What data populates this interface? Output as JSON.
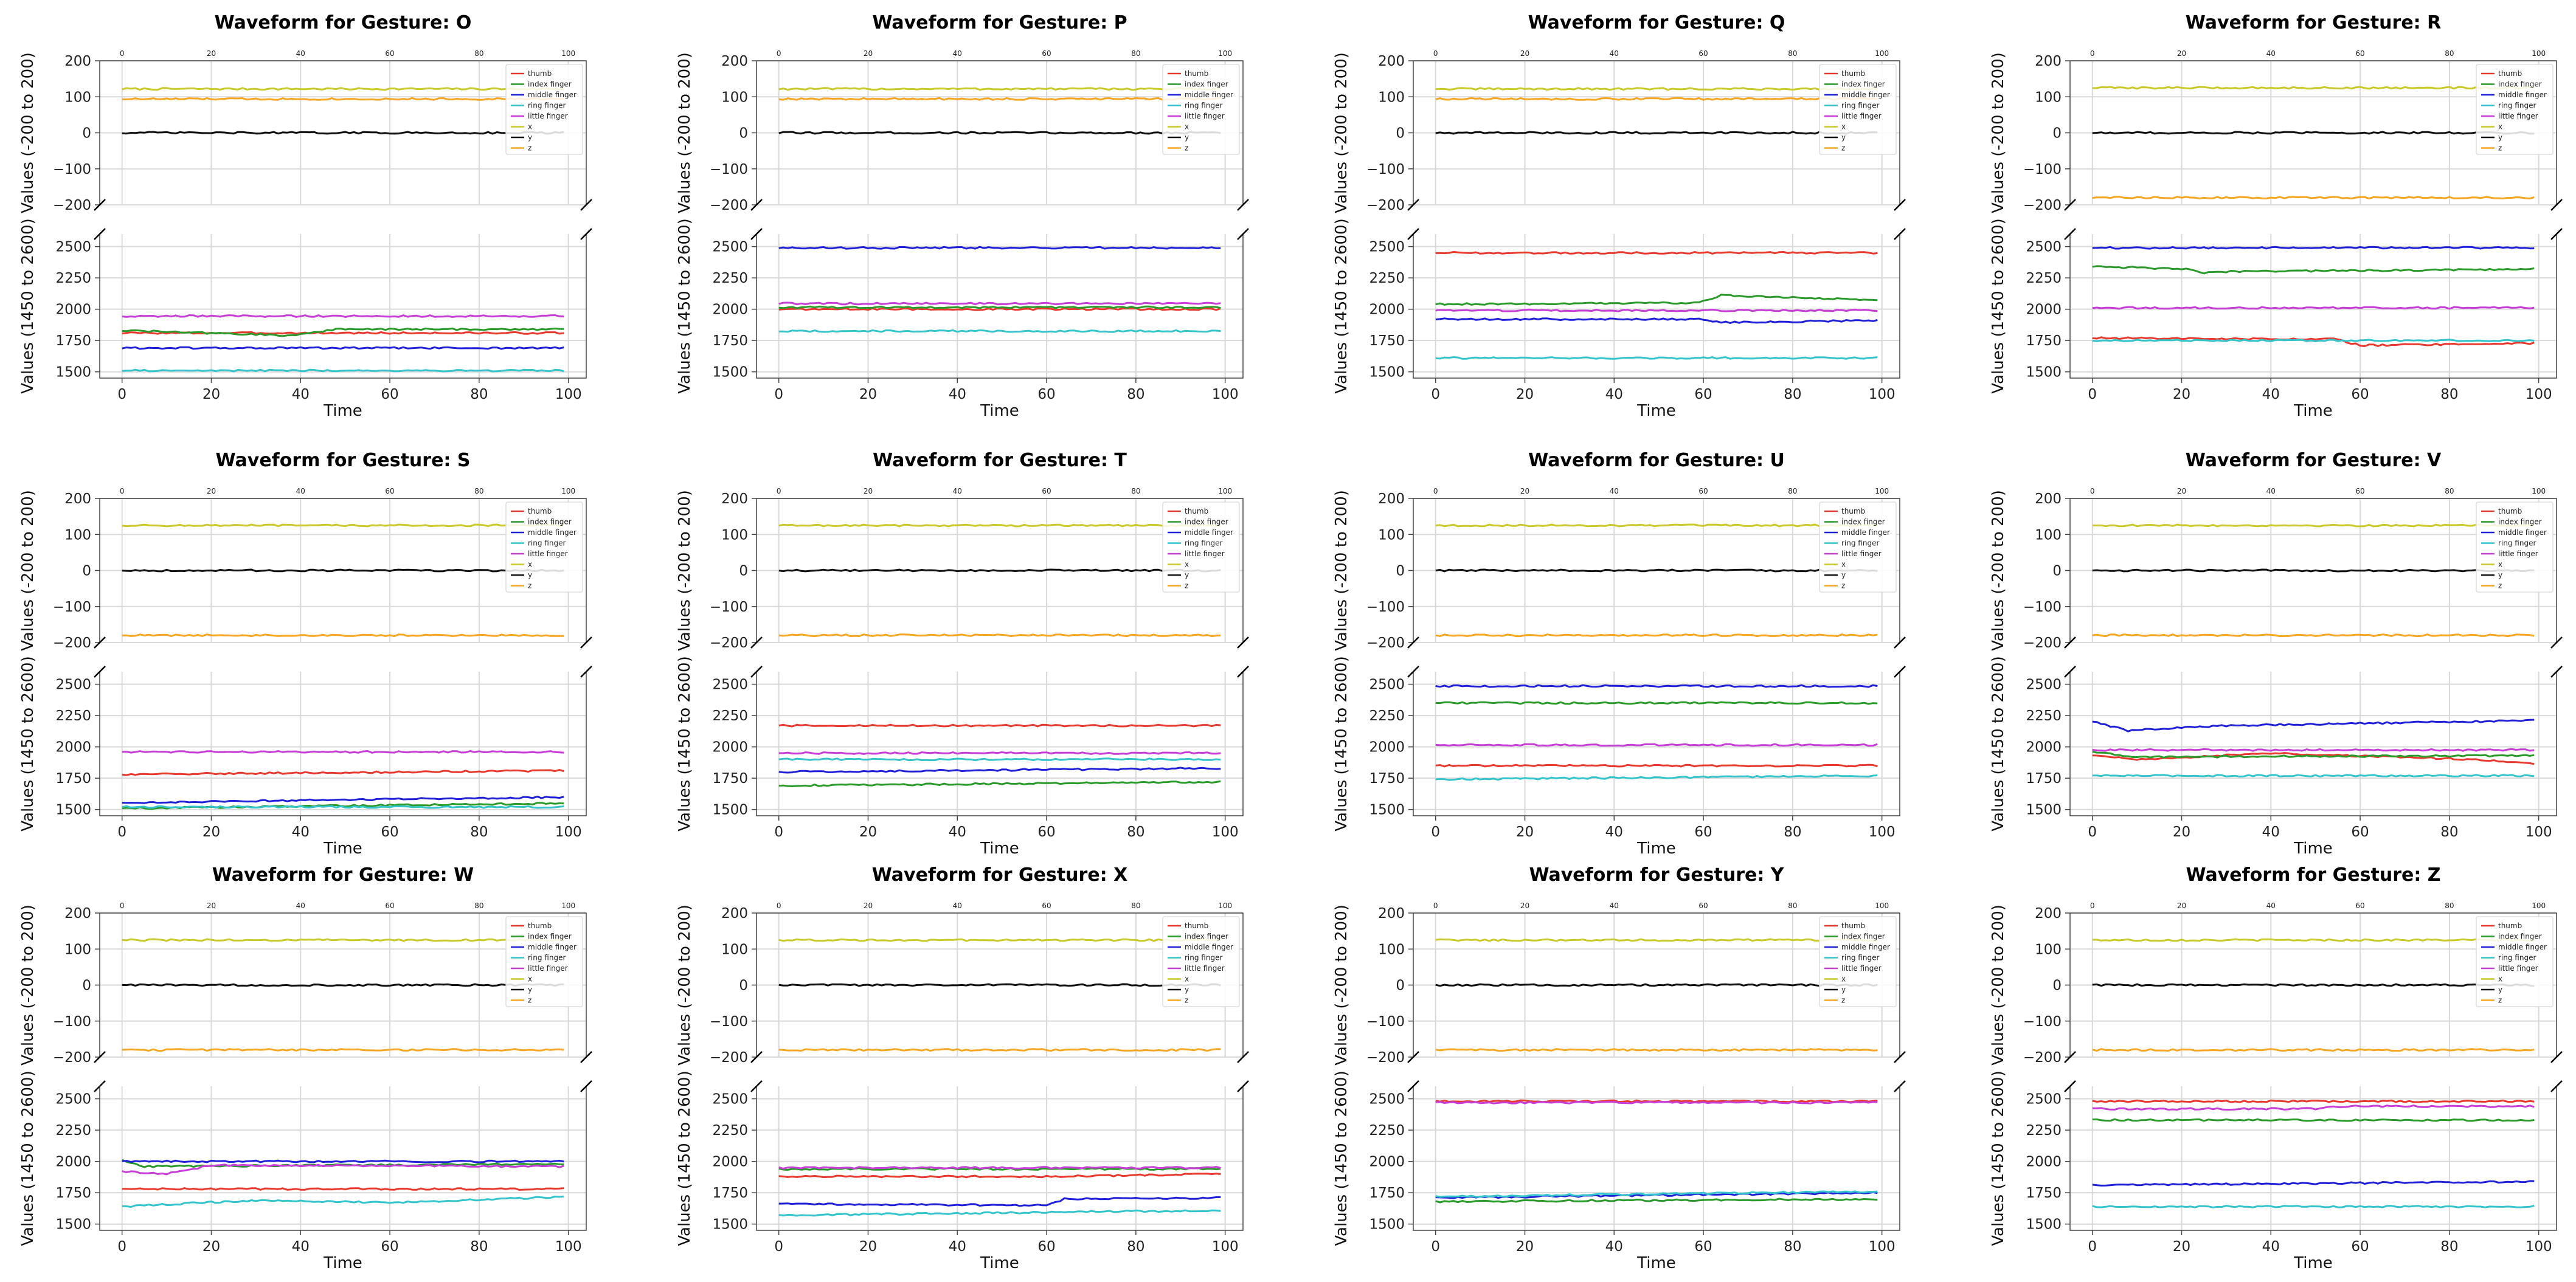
{
  "chart_data": [
    {
      "type": "line",
      "title": "Waveform for Gesture: O",
      "top_series": {
        "x": 122,
        "y": 0,
        "z": 94
      },
      "bottom_series": {
        "thumb": 1810,
        "index finger": 1830,
        "middle finger": 1690,
        "ring finger": 1510,
        "little finger": 1945
      },
      "bottom_events": {
        "index finger": [
          [
            38,
            1790
          ],
          [
            48,
            1840
          ]
        ]
      }
    },
    {
      "type": "line",
      "title": "Waveform for Gesture: P",
      "top_series": {
        "x": 122,
        "y": 0,
        "z": 94
      },
      "bottom_series": {
        "thumb": 2000,
        "index finger": 2015,
        "middle finger": 2490,
        "ring finger": 1825,
        "little finger": 2045
      },
      "bottom_events": {}
    },
    {
      "type": "line",
      "title": "Waveform for Gesture: Q",
      "top_series": {
        "x": 122,
        "y": 0,
        "z": 94
      },
      "bottom_series": {
        "thumb": 2450,
        "index finger": 2040,
        "middle finger": 1920,
        "ring finger": 1610,
        "little finger": 1990
      },
      "bottom_events": {
        "index finger": [
          [
            58,
            2050
          ],
          [
            64,
            2110
          ],
          [
            100,
            2070
          ]
        ],
        "middle finger": [
          [
            60,
            1920
          ],
          [
            64,
            1895
          ],
          [
            100,
            1910
          ]
        ]
      }
    },
    {
      "type": "line",
      "title": "Waveform for Gesture: R",
      "top_series": {
        "x": 125,
        "y": 0,
        "z": -180
      },
      "bottom_series": {
        "thumb": 1770,
        "index finger": 2340,
        "middle finger": 2490,
        "ring finger": 1750,
        "little finger": 2010
      },
      "bottom_events": {
        "index finger": [
          [
            22,
            2320
          ],
          [
            24,
            2290
          ],
          [
            30,
            2300
          ],
          [
            100,
            2320
          ]
        ],
        "thumb": [
          [
            55,
            1760
          ],
          [
            60,
            1710
          ],
          [
            100,
            1730
          ]
        ]
      }
    },
    {
      "type": "line",
      "title": "Waveform for Gesture: S",
      "top_series": {
        "x": 125,
        "y": 0,
        "z": -180
      },
      "bottom_series": {
        "thumb": 1780,
        "index finger": 1510,
        "middle finger": 1555,
        "ring finger": 1520,
        "little finger": 1960
      },
      "bottom_events": {
        "middle finger": [
          [
            100,
            1600
          ]
        ],
        "index finger": [
          [
            100,
            1550
          ]
        ],
        "thumb": [
          [
            100,
            1810
          ]
        ]
      }
    },
    {
      "type": "line",
      "title": "Waveform for Gesture: T",
      "top_series": {
        "x": 125,
        "y": 0,
        "z": -180
      },
      "bottom_series": {
        "thumb": 2170,
        "index finger": 1690,
        "middle finger": 1800,
        "ring finger": 1900,
        "little finger": 1950
      },
      "bottom_events": {
        "middle finger": [
          [
            100,
            1830
          ]
        ],
        "index finger": [
          [
            100,
            1720
          ]
        ]
      }
    },
    {
      "type": "line",
      "title": "Waveform for Gesture: U",
      "top_series": {
        "x": 125,
        "y": 0,
        "z": -180
      },
      "bottom_series": {
        "thumb": 1850,
        "index finger": 2350,
        "middle finger": 2485,
        "ring finger": 1740,
        "little finger": 2015
      },
      "bottom_events": {
        "ring finger": [
          [
            100,
            1770
          ]
        ]
      }
    },
    {
      "type": "line",
      "title": "Waveform for Gesture: V",
      "top_series": {
        "x": 125,
        "y": 0,
        "z": -180
      },
      "bottom_series": {
        "thumb": 1930,
        "index finger": 1960,
        "middle finger": 2200,
        "ring finger": 1770,
        "little finger": 1975
      },
      "bottom_events": {
        "middle finger": [
          [
            8,
            2130
          ],
          [
            30,
            2170
          ],
          [
            100,
            2210
          ]
        ],
        "thumb": [
          [
            10,
            1900
          ],
          [
            40,
            1950
          ],
          [
            85,
            1900
          ],
          [
            100,
            1860
          ]
        ],
        "index finger": [
          [
            10,
            1920
          ],
          [
            100,
            1930
          ]
        ]
      }
    },
    {
      "type": "line",
      "title": "Waveform for Gesture: W",
      "top_series": {
        "x": 125,
        "y": 0,
        "z": -180
      },
      "bottom_series": {
        "thumb": 1780,
        "index finger": 2010,
        "middle finger": 2000,
        "ring finger": 1640,
        "little finger": 1920
      },
      "bottom_events": {
        "ring finger": [
          [
            30,
            1690
          ],
          [
            60,
            1670
          ],
          [
            100,
            1720
          ]
        ],
        "little finger": [
          [
            10,
            1900
          ],
          [
            20,
            1970
          ],
          [
            100,
            1960
          ]
        ],
        "index finger": [
          [
            5,
            1960
          ],
          [
            100,
            1980
          ]
        ]
      }
    },
    {
      "type": "line",
      "title": "Waveform for Gesture: X",
      "top_series": {
        "x": 125,
        "y": 0,
        "z": -180
      },
      "bottom_series": {
        "thumb": 1880,
        "index finger": 1940,
        "middle finger": 1660,
        "ring finger": 1570,
        "little finger": 1950
      },
      "bottom_events": {
        "middle finger": [
          [
            60,
            1650
          ],
          [
            64,
            1700
          ],
          [
            100,
            1710
          ]
        ],
        "ring finger": [
          [
            100,
            1610
          ]
        ],
        "thumb": [
          [
            60,
            1880
          ],
          [
            100,
            1900
          ]
        ]
      }
    },
    {
      "type": "line",
      "title": "Waveform for Gesture: Y",
      "top_series": {
        "x": 125,
        "y": 0,
        "z": -180
      },
      "bottom_series": {
        "thumb": 2480,
        "index finger": 1680,
        "middle finger": 1710,
        "ring finger": 1720,
        "little finger": 2470
      },
      "bottom_events": {
        "middle finger": [
          [
            100,
            1750
          ]
        ],
        "ring finger": [
          [
            100,
            1760
          ]
        ],
        "index finger": [
          [
            100,
            1700
          ]
        ]
      }
    },
    {
      "type": "line",
      "title": "Waveform for Gesture: Z",
      "top_series": {
        "x": 125,
        "y": 0,
        "z": -180
      },
      "bottom_series": {
        "thumb": 2480,
        "index finger": 2330,
        "middle finger": 1810,
        "ring finger": 1640,
        "little finger": 2420
      },
      "bottom_events": {
        "little finger": [
          [
            50,
            2420
          ],
          [
            55,
            2440
          ],
          [
            100,
            2440
          ]
        ],
        "middle finger": [
          [
            100,
            1840
          ]
        ]
      }
    }
  ],
  "shared": {
    "xlabel": "Time",
    "top_ylabel": "Values (-200 to 200)",
    "bottom_ylabel": "Values (1450 to 2600)",
    "top_ylim": [
      -200,
      200
    ],
    "bottom_ylim": [
      1450,
      2600
    ],
    "xlim": [
      -5,
      104
    ],
    "x_ticks": [
      0,
      20,
      40,
      60,
      80,
      100
    ],
    "top_y_ticks": [
      -200,
      -100,
      0,
      100,
      200
    ],
    "bottom_y_ticks": [
      1500,
      1750,
      2000,
      2250,
      2500
    ],
    "top_tick_labels": [
      "−200",
      "−100",
      "0",
      "100",
      "200"
    ],
    "bottom_tick_labels": [
      "1500",
      "1750",
      "2000",
      "2250",
      "2500"
    ],
    "x_tick_labels": [
      "0",
      "20",
      "40",
      "60",
      "80",
      "100"
    ],
    "legend": [
      "thumb",
      "index finger",
      "middle finger",
      "ring finger",
      "little finger",
      "x",
      "y",
      "z"
    ],
    "colors": {
      "thumb": "#e8392f",
      "index finger": "#2a9a2a",
      "middle finger": "#2020d8",
      "ring finger": "#34c4cc",
      "little finger": "#c63ed6",
      "x": "#c9c92a",
      "y": "#111111",
      "z": "#f5a623"
    }
  }
}
